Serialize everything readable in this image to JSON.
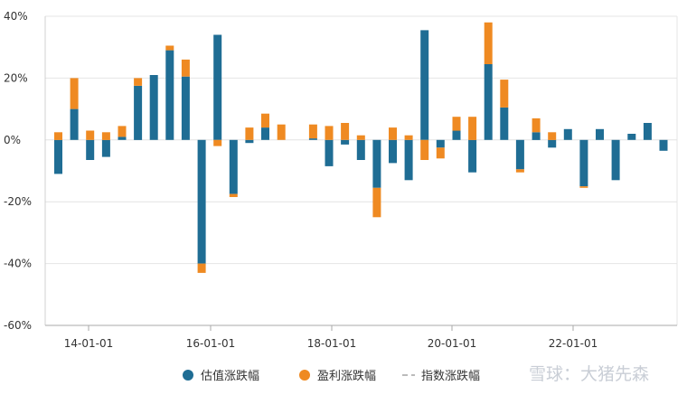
{
  "chart_data": {
    "type": "bar",
    "stacked": true,
    "x_ticks": [
      "14-01-01",
      "16-01-01",
      "18-01-01",
      "20-01-01",
      "22-01-01"
    ],
    "y_ticks": [
      "40%",
      "20%",
      "0%",
      "-20%",
      "-40%",
      "-60%"
    ],
    "ylim": [
      -60,
      40
    ],
    "grid": true,
    "series": [
      {
        "name": "估值涨跌幅",
        "color": "#1f6d94",
        "values": [
          -11,
          10,
          -6.5,
          -5.5,
          1,
          17.5,
          21,
          29,
          20.5,
          -40,
          34,
          -17.5,
          -1,
          4,
          0,
          0,
          0.5,
          -8.5,
          -1.5,
          -6.5,
          -15.5,
          -7.5,
          -13,
          35.5,
          -2.5,
          3,
          -10.5,
          24.5,
          10.5,
          -9.5,
          2.5,
          -2.5,
          3.5,
          -15,
          3.5,
          -13,
          2,
          5.5,
          -3.5
        ]
      },
      {
        "name": "盈利涨跌幅",
        "color": "#ef8a22",
        "values": [
          2.5,
          10,
          3,
          2.5,
          3.5,
          2.5,
          0,
          1.5,
          5.5,
          -3,
          -2,
          -1,
          4,
          4.5,
          5,
          0,
          4.5,
          4.5,
          5.5,
          1.5,
          -9.5,
          4,
          1.5,
          -6.5,
          -3.5,
          4.5,
          7.5,
          13.5,
          9,
          -1,
          4.5,
          2.5,
          0,
          -0.5,
          0,
          0,
          0,
          0,
          0
        ]
      }
    ],
    "legend": [
      {
        "label": "估值涨跌幅",
        "marker": "dot",
        "color": "#1f6d94"
      },
      {
        "label": "盈利涨跌幅",
        "marker": "dot",
        "color": "#ef8a22"
      },
      {
        "label": "指数涨跌幅",
        "marker": "dash",
        "color": "#bbbbbb"
      }
    ],
    "legend_position": "bottom"
  },
  "watermark": "雪球：大猪先森"
}
